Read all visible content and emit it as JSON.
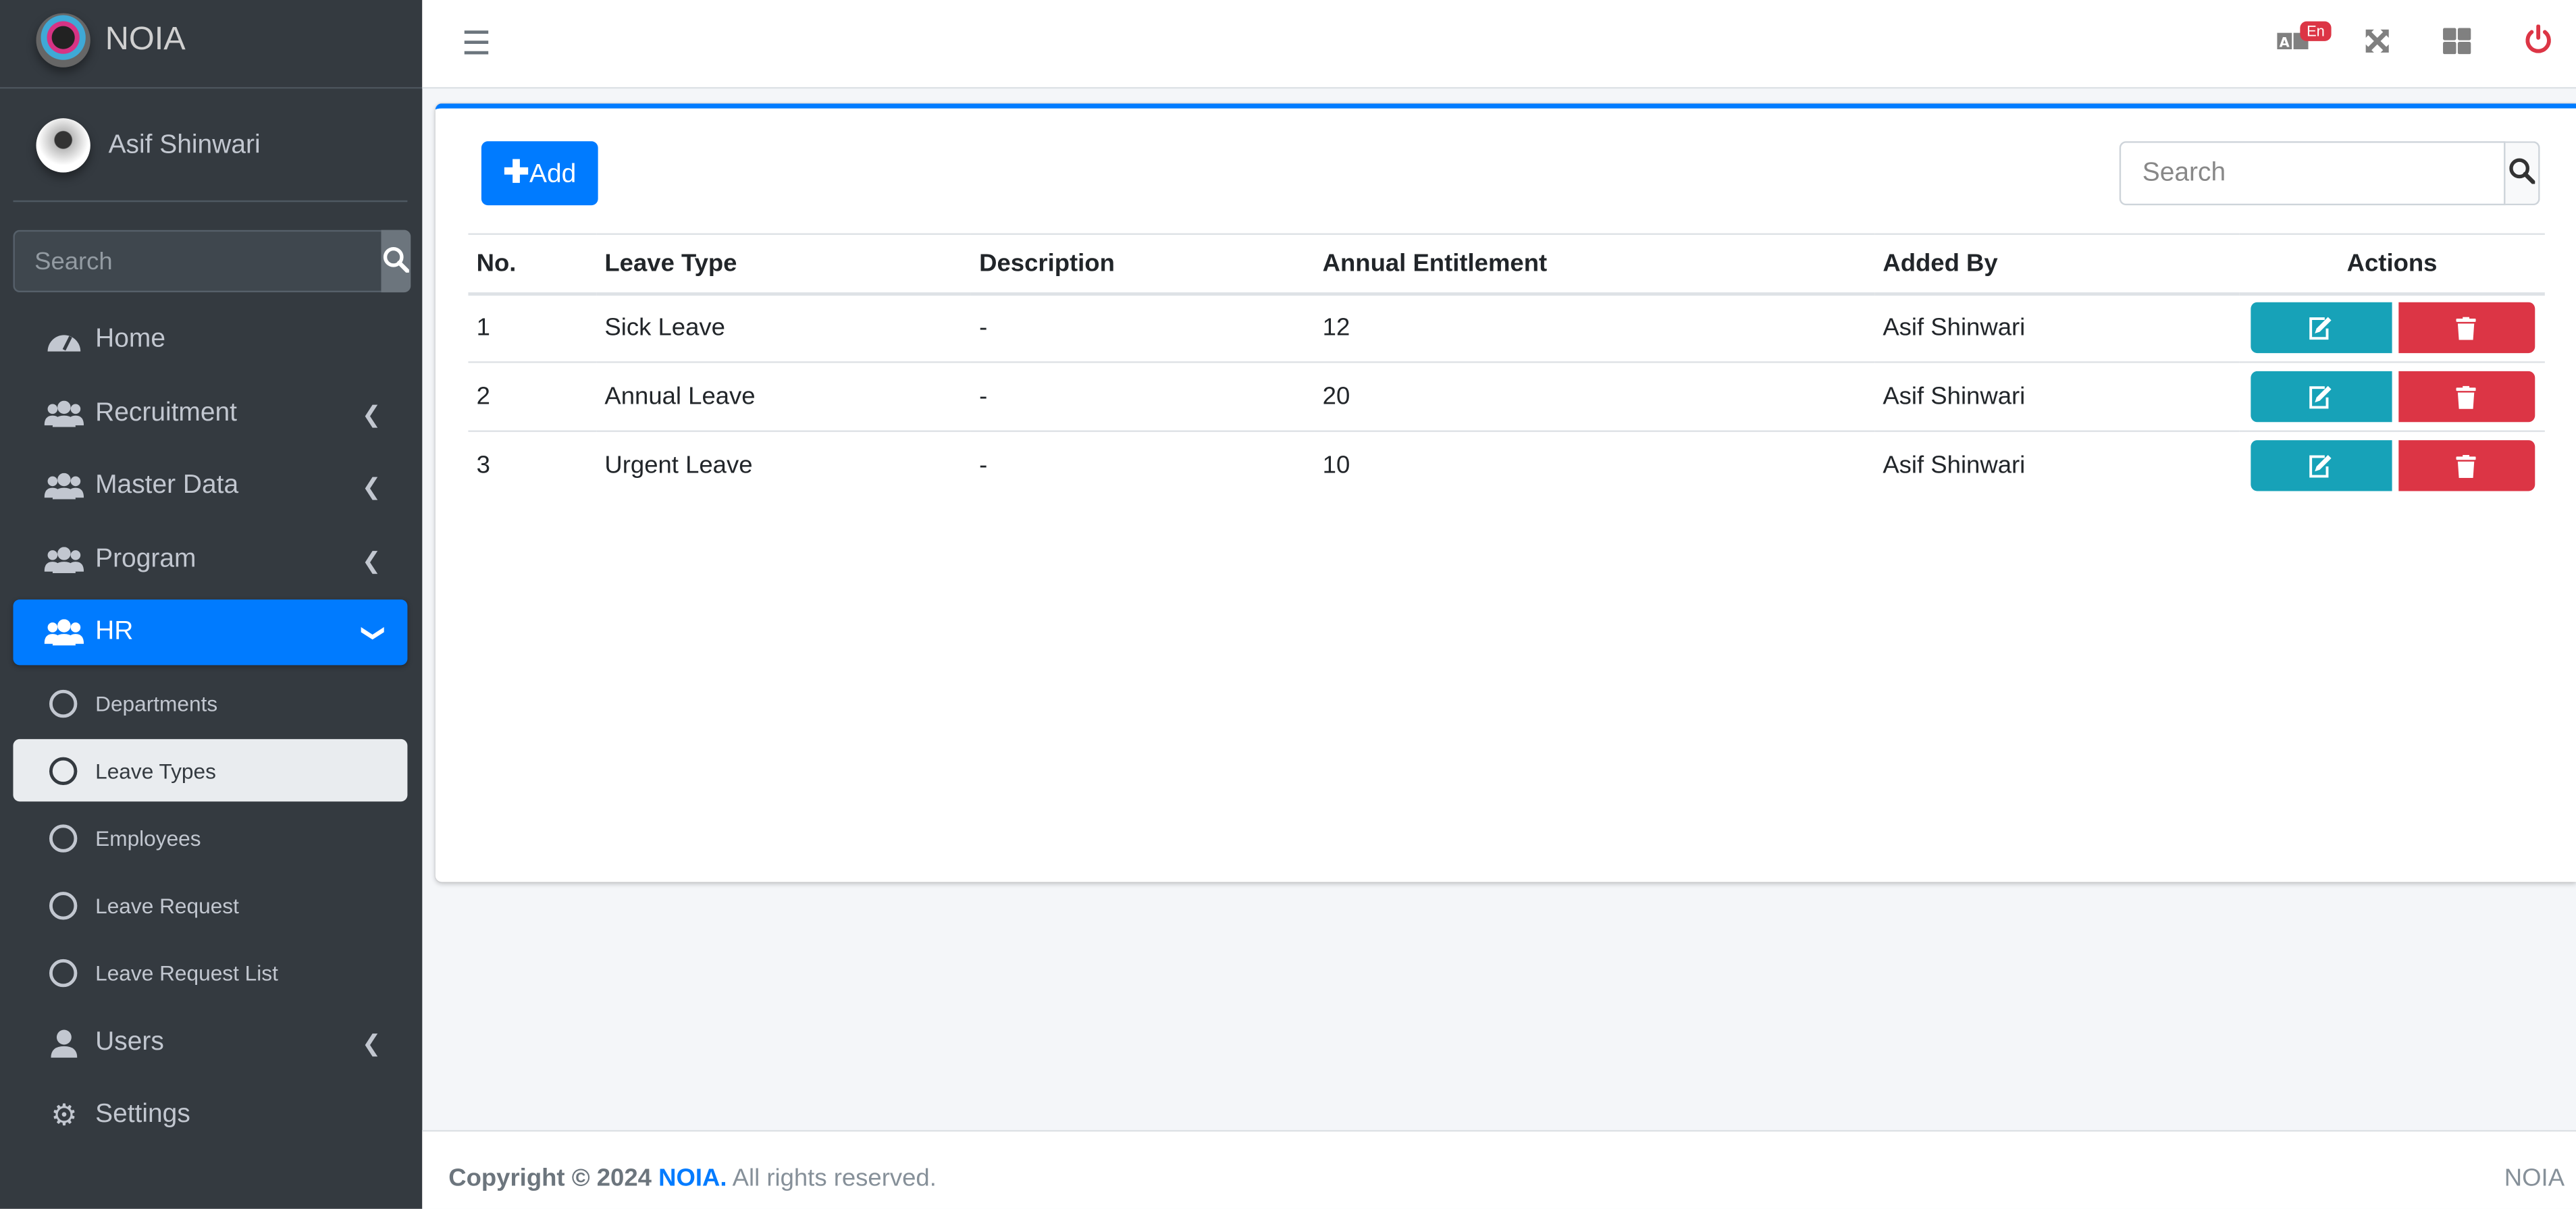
{
  "brand": {
    "name": "NOIA"
  },
  "user": {
    "name": "Asif Shinwari"
  },
  "sidebar": {
    "search_placeholder": "Search",
    "items": [
      {
        "label": "Home",
        "icon": "tachometer-icon"
      },
      {
        "label": "Recruitment",
        "icon": "users-icon"
      },
      {
        "label": "Master Data",
        "icon": "users-icon"
      },
      {
        "label": "Program",
        "icon": "users-icon"
      },
      {
        "label": "HR",
        "icon": "users-icon",
        "active": true
      }
    ],
    "hr_sub": [
      {
        "label": "Departments"
      },
      {
        "label": "Leave Types",
        "active": true
      },
      {
        "label": "Employees"
      },
      {
        "label": "Leave Request"
      },
      {
        "label": "Leave Request List"
      }
    ],
    "bottom": [
      {
        "label": "Users",
        "icon": "user-icon"
      },
      {
        "label": "Settings",
        "icon": "gears-icon"
      }
    ]
  },
  "topbar": {
    "language_badge": "En"
  },
  "main": {
    "add_label": "Add",
    "search_placeholder": "Search",
    "columns": [
      "No.",
      "Leave Type",
      "Description",
      "Annual Entitlement",
      "Added By",
      "Actions"
    ],
    "rows": [
      {
        "no": "1",
        "type": "Sick Leave",
        "desc": "-",
        "annual": "12",
        "added_by": "Asif Shinwari"
      },
      {
        "no": "2",
        "type": "Annual Leave",
        "desc": "-",
        "annual": "20",
        "added_by": "Asif Shinwari"
      },
      {
        "no": "3",
        "type": "Urgent Leave",
        "desc": "-",
        "annual": "10",
        "added_by": "Asif Shinwari"
      }
    ]
  },
  "footer": {
    "copyright": "Copyright © 2024",
    "brand": "NOIA.",
    "rights": "All rights reserved.",
    "right": "NOIA"
  },
  "colors": {
    "primary": "#007bff",
    "info": "#17a2b8",
    "danger": "#dc3545",
    "sidebar": "#343a40"
  }
}
